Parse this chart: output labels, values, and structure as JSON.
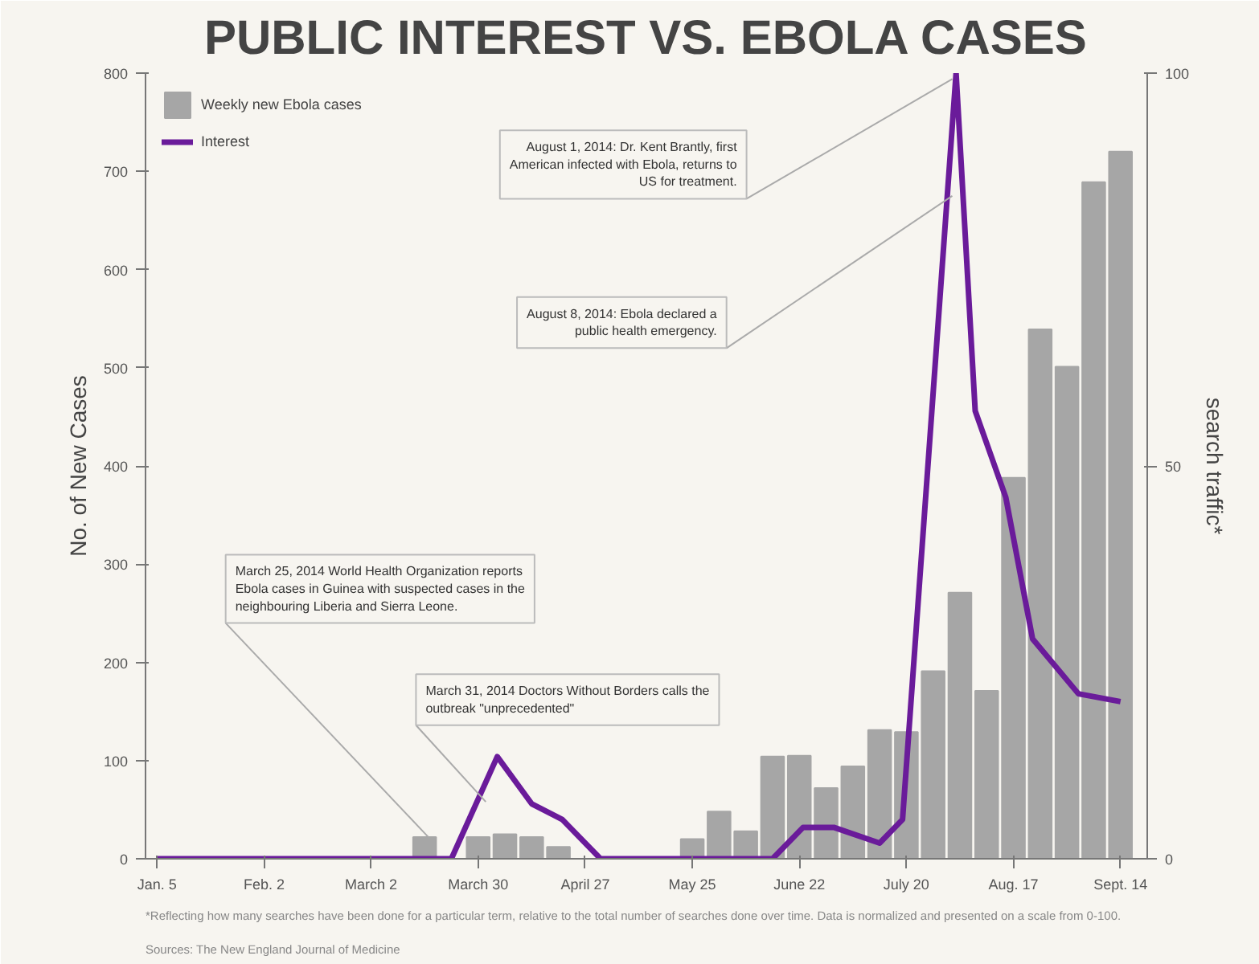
{
  "chart_data": {
    "type": "bar",
    "title": "PUBLIC INTEREST VS. EBOLA CASES",
    "ylabel": "No. of New Cases",
    "y2label": "search traffic*",
    "series": [
      {
        "name": "Weekly new Ebola cases",
        "axis": "y",
        "color": "#a6a6a6",
        "x": [
          "2014-03-16",
          "2014-03-30",
          "2014-04-06",
          "2014-04-13",
          "2014-04-20",
          "2014-05-25",
          "2014-06-01",
          "2014-06-08",
          "2014-06-15",
          "2014-06-22",
          "2014-06-29",
          "2014-07-06",
          "2014-07-13",
          "2014-07-20",
          "2014-07-27",
          "2014-08-03",
          "2014-08-10",
          "2014-08-17",
          "2014-08-24",
          "2014-08-31",
          "2014-09-07",
          "2014-09-14"
        ],
        "values": [
          22,
          22,
          25,
          22,
          12,
          20,
          48,
          28,
          104,
          105,
          72,
          94,
          131,
          129,
          191,
          271,
          171,
          388,
          539,
          501,
          689,
          720
        ]
      },
      {
        "name": "Interest",
        "type": "line",
        "axis": "y2",
        "color": "#6a1b9a",
        "x": [
          "2014-01-05",
          "2014-03-23",
          "2014-04-04",
          "2014-04-13",
          "2014-04-21",
          "2014-05-01",
          "2014-06-15",
          "2014-06-23",
          "2014-07-01",
          "2014-07-13",
          "2014-07-19",
          "2014-08-02",
          "2014-08-07",
          "2014-08-15",
          "2014-08-22",
          "2014-09-03",
          "2014-09-14"
        ],
        "values": [
          0,
          0,
          13,
          7,
          5,
          0,
          0,
          4,
          4,
          2,
          5,
          100,
          57,
          46,
          28,
          21,
          20
        ]
      }
    ],
    "xlim": [
      "2014-01-02",
      "2014-09-21"
    ],
    "xticks": [
      {
        "value": "2014-01-05",
        "label": "Jan. 5"
      },
      {
        "value": "2014-02-02",
        "label": "Feb. 2"
      },
      {
        "value": "2014-03-02",
        "label": "March 2"
      },
      {
        "value": "2014-03-30",
        "label": "March 30"
      },
      {
        "value": "2014-04-27",
        "label": "April 27"
      },
      {
        "value": "2014-05-25",
        "label": "May 25"
      },
      {
        "value": "2014-06-22",
        "label": "June 22"
      },
      {
        "value": "2014-07-20",
        "label": "July 20"
      },
      {
        "value": "2014-08-17",
        "label": "Aug. 17"
      },
      {
        "value": "2014-09-14",
        "label": "Sept. 14"
      }
    ],
    "ylim": [
      0,
      800
    ],
    "yticks": [
      0,
      100,
      200,
      300,
      400,
      500,
      600,
      700,
      800
    ],
    "y2lim": [
      0,
      100
    ],
    "y2ticks": [
      0,
      50,
      100
    ],
    "legend": "top left",
    "grid": false,
    "annotations": [
      {
        "text": "March 25, 2014 World Health Organization reports Ebola cases in Guinea with suspected cases in the neighbouring Liberia and Sierra Leone.",
        "x": "2014-03-17",
        "y": 22
      },
      {
        "text": "March 31, 2014 Doctors Without Borders calls the outbreak \"unprecedented\"",
        "x": "2014-04-01",
        "y": 58
      },
      {
        "text": "August 1, 2014: Dr. Kent Brantly, first American infected with Ebola, returns to US for treatment.",
        "x": "2014-08-01",
        "y": 794
      },
      {
        "text": "August 8, 2014: Ebola declared a public health emergency.",
        "x": "2014-08-01",
        "y": 675
      },
      "Sources: The New England Journal of Medicine",
      "*Reflecting how many searches have been done for a particular term, relative to the total number of searches done over time. Data is normalized and presented on a scale from 0-100."
    ]
  }
}
